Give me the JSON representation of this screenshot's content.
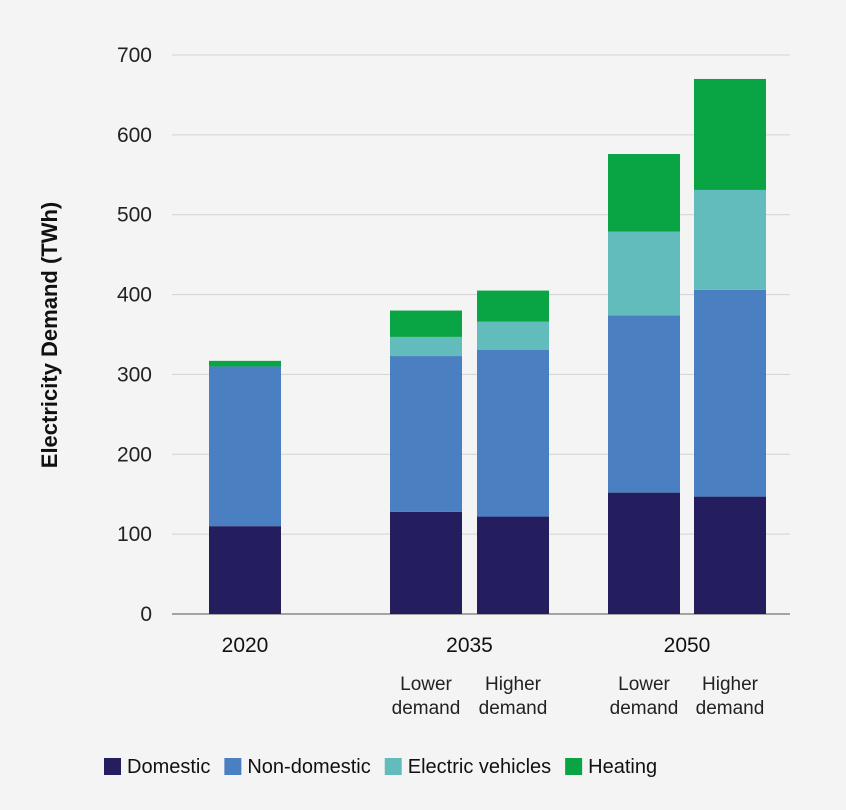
{
  "chart_data": {
    "type": "bar",
    "stacked": true,
    "ylabel": "Electricity Demand (TWh)",
    "ylim": [
      0,
      700
    ],
    "yticks": [
      0,
      100,
      200,
      300,
      400,
      500,
      600,
      700
    ],
    "grid": true,
    "legend_position": "bottom",
    "groups": [
      {
        "label": "2020",
        "bars": [
          {
            "sublabel": [
              "",
              ""
            ]
          }
        ]
      },
      {
        "label": "2035",
        "bars": [
          {
            "sublabel": [
              "Lower",
              "demand"
            ]
          },
          {
            "sublabel": [
              "Higher",
              "demand"
            ]
          }
        ]
      },
      {
        "label": "2050",
        "bars": [
          {
            "sublabel": [
              "Lower",
              "demand"
            ]
          },
          {
            "sublabel": [
              "Higher",
              "demand"
            ]
          }
        ]
      }
    ],
    "series": [
      {
        "name": "Domestic",
        "color": "#251e5e",
        "values": [
          110,
          128,
          122,
          152,
          147
        ]
      },
      {
        "name": "Non-domestic",
        "color": "#4a7fc1",
        "values": [
          200,
          195,
          209,
          222,
          259
        ]
      },
      {
        "name": "Electric vehicles",
        "color": "#62bcbc",
        "values": [
          0,
          24,
          35,
          105,
          125
        ]
      },
      {
        "name": "Heating",
        "color": "#09a444",
        "values": [
          7,
          33,
          39,
          97,
          139
        ]
      }
    ]
  }
}
